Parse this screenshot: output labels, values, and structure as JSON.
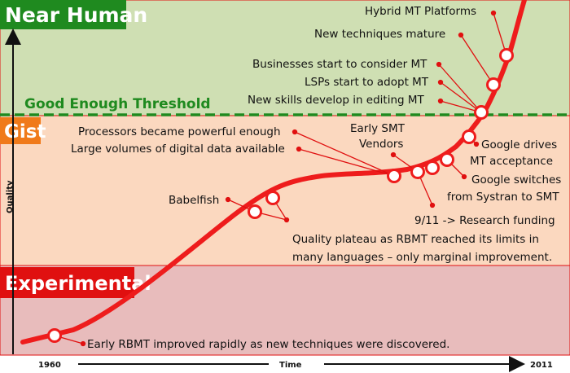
{
  "zones": {
    "near_human": "Near Human",
    "gist": "Gist",
    "experimental": "Experimental"
  },
  "threshold": "Good Enough Threshold",
  "axes": {
    "y_label": "Quality",
    "x_label": "Time",
    "x_start": "1960",
    "x_end": "2011"
  },
  "colors": {
    "near_human_band": "#cfdfb3",
    "gist_band": "#fbd8bf",
    "experimental_band": "#e8bcbc",
    "near_human_label": "#1f8a1f",
    "gist_label": "#f07a1a",
    "experimental_label": "#e01010",
    "curve": "#ee1c1c",
    "threshold_line": "#1f8a1f"
  },
  "annotations": {
    "hybrid": "Hybrid MT Platforms",
    "mature": "New techniques mature",
    "businesses": "Businesses start to consider MT",
    "lsps": "LSPs start to adopt MT",
    "skills": "New skills develop in editing MT",
    "processors": "Processors became powerful enough",
    "large_volumes": "Large volumes of digital data available",
    "early_smt_1": "Early SMT",
    "early_smt_2": "Vendors",
    "google_drives_1": "Google drives",
    "google_drives_2": "MT acceptance",
    "google_switches_1": "Google switches",
    "google_switches_2": "from Systran to SMT",
    "nine_eleven": "9/11 -> Research funding",
    "babelfish": "Babelfish",
    "plateau_1": "Quality plateau as RBMT reached its limits in",
    "plateau_2": "many languages – only marginal improvement.",
    "early_rbmt": "Early RBMT improved rapidly as new techniques were discovered."
  }
}
